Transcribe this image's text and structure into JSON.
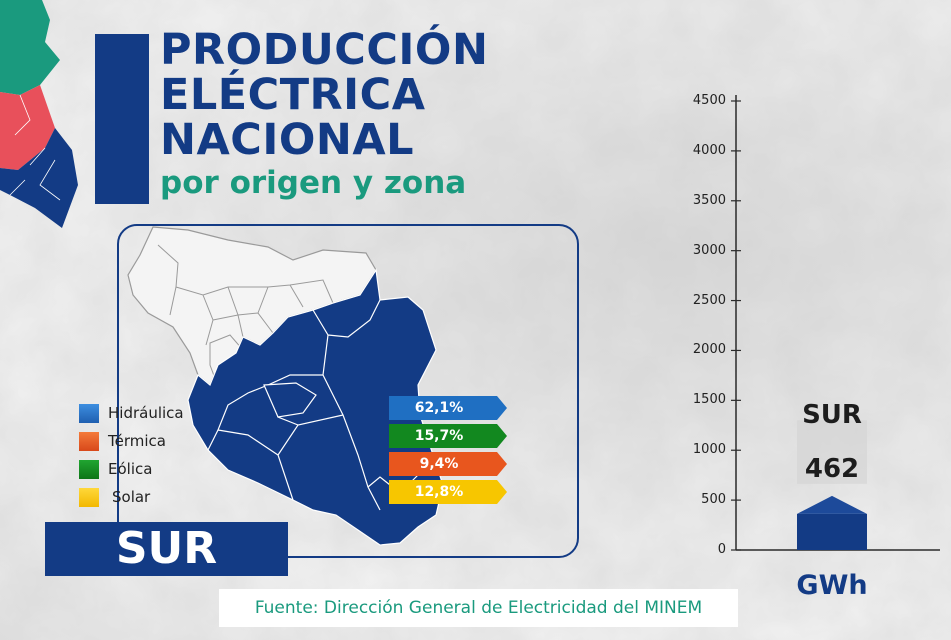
{
  "header": {
    "title_lines": [
      "PRODUCCIÓN",
      "ELÉCTRICA",
      "NACIONAL"
    ],
    "subtitle": "por origen y zona"
  },
  "zone_label": "SUR",
  "legend": [
    {
      "label": "Hidráulica",
      "color": "#1f6fc2"
    },
    {
      "label": "Térmica",
      "color": "#e8561e"
    },
    {
      "label": "Eólica",
      "color": "#12881f"
    },
    {
      "label": "Solar",
      "color": "#f7c600"
    }
  ],
  "percent_tags": [
    {
      "label": "62,1%",
      "color": "#1f6fc2"
    },
    {
      "label": "15,7%",
      "color": "#12881f"
    },
    {
      "label": "9,4%",
      "color": "#e8561e"
    },
    {
      "label": "12,8%",
      "color": "#f7c600"
    }
  ],
  "source": "Fuente: Dirección General de Electricidad del MINEM",
  "colors": {
    "navy": "#133b85",
    "teal": "#1a9a7e",
    "coral": "#e8505b"
  },
  "chart_data": {
    "type": "bar",
    "categories": [
      "SUR"
    ],
    "values": [
      462
    ],
    "value_labels": [
      "462"
    ],
    "unit": "GWh",
    "ylim": [
      0,
      4500
    ],
    "yticks": [
      0,
      500,
      1000,
      1500,
      2000,
      2500,
      3000,
      3500,
      4000,
      4500
    ],
    "grid": false
  }
}
